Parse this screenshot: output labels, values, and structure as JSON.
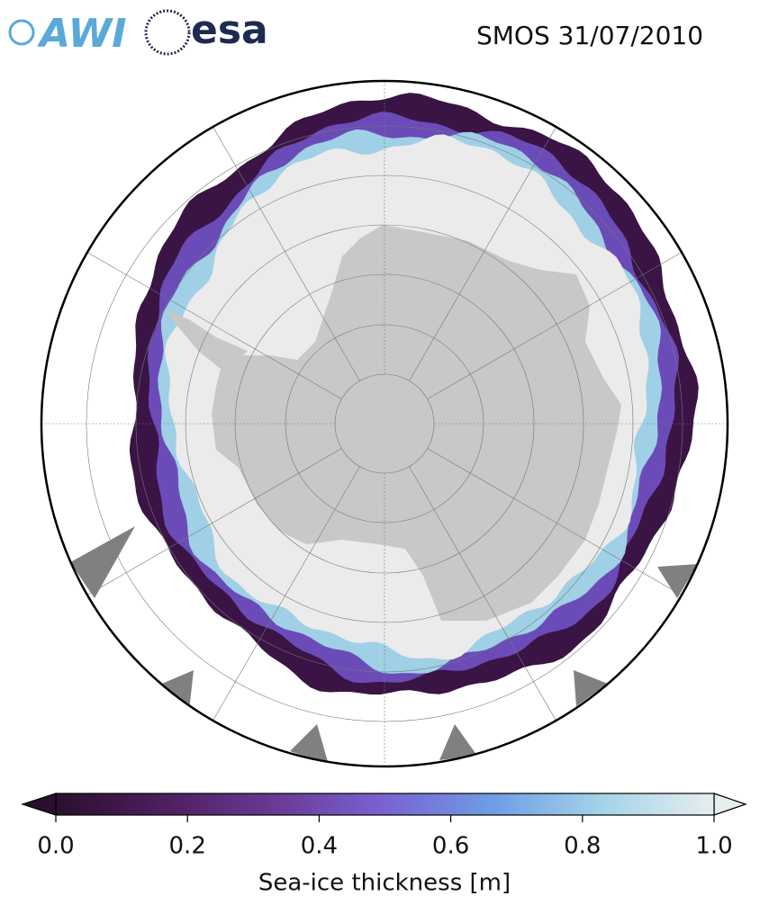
{
  "header": {
    "logos": [
      "AWI",
      "esa"
    ],
    "title": "SMOS 31/07/2010"
  },
  "colorbar": {
    "label": "Sea-ice thickness [m]",
    "lim": [
      0,
      1
    ],
    "ticks": [
      {
        "value": 0,
        "label": "0.0"
      },
      {
        "value": 0.2,
        "label": "0.2"
      },
      {
        "value": 0.4,
        "label": "0.4"
      },
      {
        "value": 0.6,
        "label": "0.6"
      },
      {
        "value": 0.8,
        "label": "0.8"
      },
      {
        "value": 1,
        "label": "1.0"
      }
    ],
    "colormap": [
      "#2a0f2e",
      "#4e1f5f",
      "#6a3a95",
      "#7a62d2",
      "#6f9ee6",
      "#a6d4e8",
      "#e6eeee"
    ]
  }
}
